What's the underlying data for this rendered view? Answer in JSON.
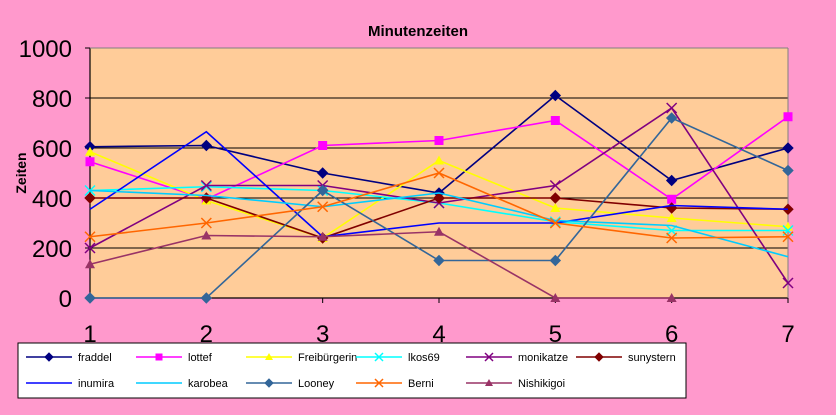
{
  "chart_data": {
    "type": "line",
    "title": "Minutenzeiten",
    "xlabel": "",
    "ylabel": "Zeiten",
    "x": [
      1,
      2,
      3,
      4,
      5,
      6,
      7
    ],
    "x_tick_labels": [
      "1",
      "2",
      "3",
      "4",
      "5",
      "6",
      "7"
    ],
    "y_tick_labels": [
      "0",
      "200",
      "400",
      "600",
      "800",
      "1000"
    ],
    "ylim": [
      0,
      1000
    ],
    "grid": "horizontal",
    "legend_position": "bottom",
    "colors": {
      "page_background": "#ff99cc",
      "plot_background": "#ffcc99"
    },
    "series": [
      {
        "name": "fraddel",
        "color": "#000080",
        "marker": "diamond",
        "values": [
          605,
          610,
          500,
          420,
          810,
          470,
          600
        ]
      },
      {
        "name": "lottef",
        "color": "#ff00ff",
        "marker": "square",
        "values": [
          545,
          395,
          610,
          630,
          710,
          395,
          725
        ]
      },
      {
        "name": "Freibürgerin",
        "color": "#ffff00",
        "marker": "triangle",
        "values": [
          585,
          390,
          240,
          550,
          360,
          320,
          285
        ]
      },
      {
        "name": "lkos69",
        "color": "#00ffff",
        "marker": "x",
        "values": [
          430,
          445,
          430,
          380,
          305,
          270,
          270
        ]
      },
      {
        "name": "monikatze",
        "color": "#800080",
        "marker": "x",
        "values": [
          200,
          450,
          450,
          380,
          450,
          760,
          60
        ]
      },
      {
        "name": "sunystern",
        "color": "#800000",
        "marker": "diamond",
        "values": [
          400,
          400,
          240,
          400,
          400,
          360,
          355
        ]
      },
      {
        "name": "inumira",
        "color": "#0000ff",
        "marker": "none",
        "values": [
          355,
          665,
          245,
          300,
          300,
          370,
          355
        ]
      },
      {
        "name": "karobea",
        "color": "#00ccff",
        "marker": "none",
        "values": [
          430,
          410,
          365,
          420,
          310,
          290,
          165
        ]
      },
      {
        "name": "Looney",
        "color": "#336699",
        "marker": "diamond",
        "values": [
          0,
          0,
          430,
          150,
          150,
          720,
          510
        ]
      },
      {
        "name": "Berni",
        "color": "#ff6600",
        "marker": "x",
        "values": [
          245,
          300,
          365,
          500,
          300,
          240,
          245
        ]
      },
      {
        "name": "Nishikigoi",
        "color": "#993366",
        "marker": "triangle",
        "values": [
          135,
          250,
          245,
          265,
          0,
          0,
          null
        ]
      }
    ]
  }
}
